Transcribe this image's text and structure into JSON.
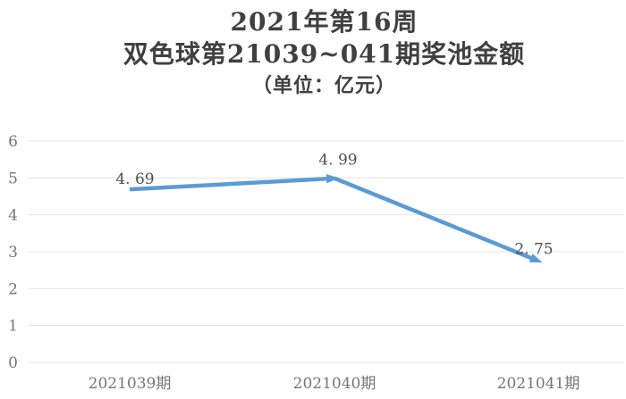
{
  "title": {
    "line1": "2021年第16周",
    "line2": "双色球第21039~041期奖池金额",
    "line3": "（单位：亿元）"
  },
  "colors": {
    "line": "#5B9BD5",
    "grid": "#e4e4e4",
    "title_text": "#404040",
    "axis_text": "#767676",
    "value_text": "#4f4f4f",
    "background": "#ffffff"
  },
  "chart_data": {
    "type": "line",
    "title": "2021年第16周 双色球第21039~041期奖池金额（单位：亿元）",
    "categories": [
      "2021039期",
      "2021040期",
      "2021041期"
    ],
    "values": [
      4.69,
      4.99,
      2.75
    ],
    "point_labels": [
      "4. 69",
      "4. 99",
      "2. 75"
    ],
    "ylim": [
      0,
      6
    ],
    "yticks": [
      0,
      1,
      2,
      3,
      4,
      5,
      6
    ],
    "grid": true,
    "legend": false,
    "marker": "arrowhead-at-segment-end"
  }
}
